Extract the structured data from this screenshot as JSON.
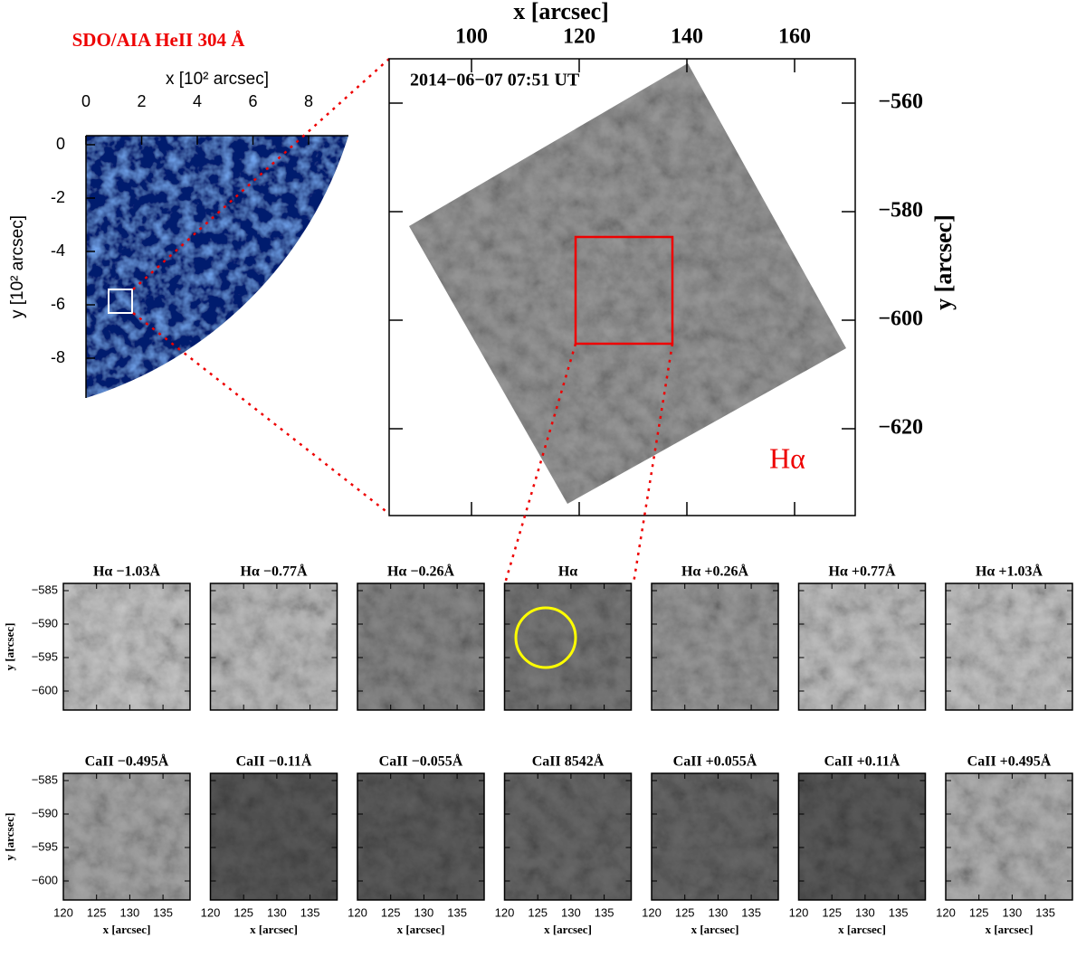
{
  "aia": {
    "title": "SDO/AIA HeII 304 Å",
    "x_label": "x [10² arcsec]",
    "x_ticks": [
      "0",
      "2",
      "4",
      "6",
      "8"
    ],
    "y_label": "y [10² arcsec]",
    "y_ticks": [
      "0",
      "-2",
      "-4",
      "-6",
      "-8"
    ]
  },
  "halpha": {
    "x_label": "x [arcsec]",
    "x_ticks": [
      "100",
      "120",
      "140",
      "160"
    ],
    "y_label": "y [arcsec]",
    "y_ticks": [
      "−560",
      "−580",
      "−600",
      "−620"
    ],
    "timestamp": "2014−06−07 07:51 UT",
    "line_label": "Hα"
  },
  "small_panels": {
    "y_label": "y [arcsec]",
    "y_ticks": [
      "−585",
      "−590",
      "−595",
      "−600"
    ],
    "x_label": "x [arcsec]",
    "x_ticks": [
      "120",
      "125",
      "130",
      "135"
    ],
    "row1": [
      "Hα −1.03Å",
      "Hα −0.77Å",
      "Hα −0.26Å",
      "Hα",
      "Hα +0.26Å",
      "Hα +0.77Å",
      "Hα +1.03Å"
    ],
    "row2": [
      "CaII −0.495Å",
      "CaII −0.11Å",
      "CaII −0.055Å",
      "CaII 8542Å",
      "CaII +0.055Å",
      "CaII +0.11Å",
      "CaII +0.495Å"
    ]
  }
}
